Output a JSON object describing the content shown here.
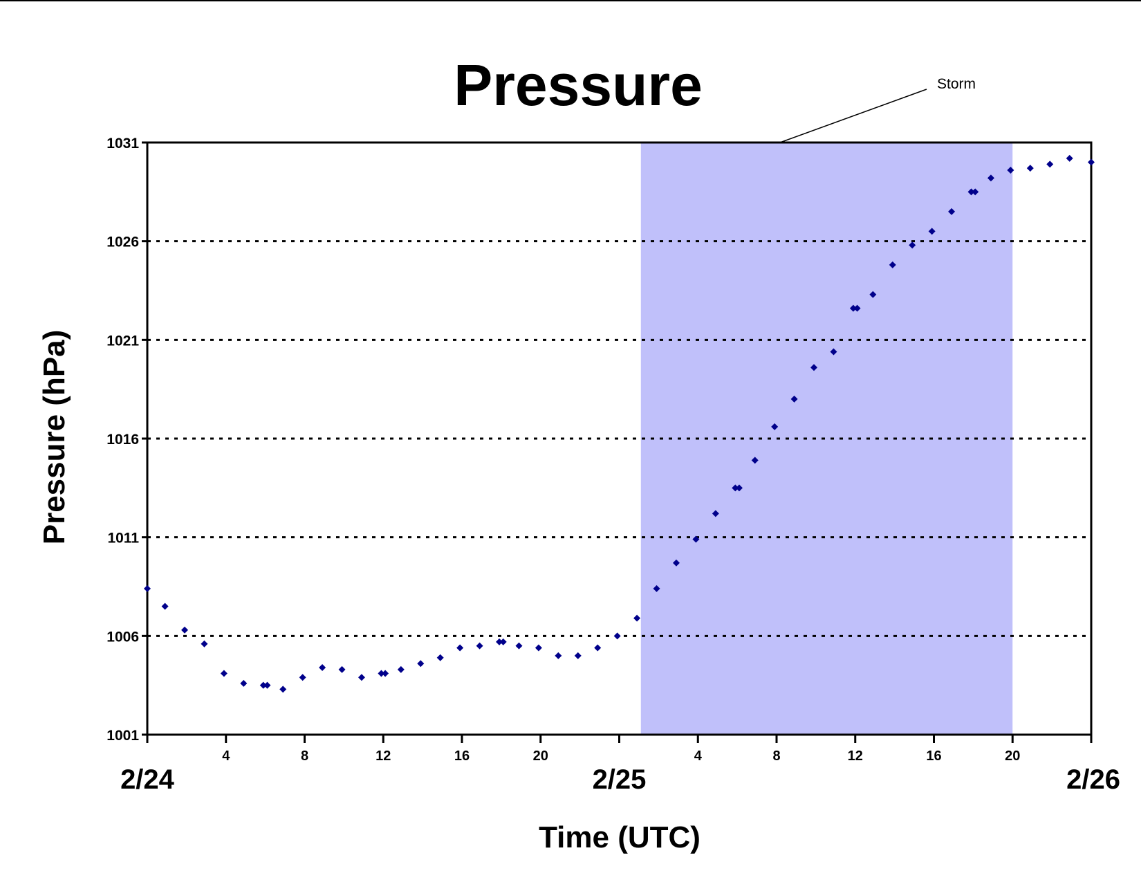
{
  "chart_data": {
    "type": "scatter",
    "title": "Pressure",
    "xlabel": "Time (UTC)",
    "ylabel": "Pressure (hPa)",
    "xlim": [
      0,
      48
    ],
    "ylim": [
      1001,
      1031
    ],
    "yticks": [
      1001,
      1006,
      1011,
      1016,
      1021,
      1026,
      1031
    ],
    "x_hour_ticks": [
      {
        "x": 4,
        "label": "4"
      },
      {
        "x": 8,
        "label": "8"
      },
      {
        "x": 12,
        "label": "12"
      },
      {
        "x": 16,
        "label": "16"
      },
      {
        "x": 20,
        "label": "20"
      },
      {
        "x": 28,
        "label": "4"
      },
      {
        "x": 32,
        "label": "8"
      },
      {
        "x": 36,
        "label": "12"
      },
      {
        "x": 40,
        "label": "16"
      },
      {
        "x": 44,
        "label": "20"
      }
    ],
    "x_date_labels": [
      {
        "x": 0,
        "label": "2/24"
      },
      {
        "x": 24,
        "label": "2/25"
      },
      {
        "x": 48,
        "label": "2/26"
      }
    ],
    "grid": "horizontal dotted",
    "marker_color": "#00008b",
    "shade_color": "#c0c0fa",
    "annotations": [
      {
        "label": "Storm",
        "span_x": [
          25.1,
          44
        ]
      }
    ],
    "x": [
      0,
      0.9,
      1.9,
      2.9,
      3.9,
      4.9,
      5.9,
      6.1,
      6.9,
      7.9,
      8.9,
      9.9,
      10.9,
      11.9,
      12.1,
      12.9,
      13.9,
      14.9,
      15.9,
      16.9,
      17.9,
      18.1,
      18.9,
      19.9,
      20.9,
      21.9,
      22.9,
      23.9,
      24.9,
      25.9,
      26.9,
      27.9,
      28.9,
      29.9,
      30.1,
      30.9,
      31.9,
      32.9,
      33.9,
      34.9,
      35.9,
      36.1,
      36.9,
      37.9,
      38.9,
      39.9,
      40.9,
      41.9,
      42.1,
      42.9,
      43.9,
      44.9,
      45.9,
      46.9,
      48
    ],
    "y": [
      1008.4,
      1007.5,
      1006.3,
      1005.6,
      1004.1,
      1003.6,
      1003.5,
      1003.5,
      1003.3,
      1003.9,
      1004.4,
      1004.3,
      1003.9,
      1004.1,
      1004.1,
      1004.3,
      1004.6,
      1004.9,
      1005.4,
      1005.5,
      1005.7,
      1005.7,
      1005.5,
      1005.4,
      1005.0,
      1005.0,
      1005.4,
      1006.0,
      1006.9,
      1008.4,
      1009.7,
      1010.9,
      1012.2,
      1013.5,
      1013.5,
      1014.9,
      1016.6,
      1018.0,
      1019.6,
      1020.4,
      1022.6,
      1022.6,
      1023.3,
      1024.8,
      1025.8,
      1026.5,
      1027.5,
      1028.5,
      1028.5,
      1029.2,
      1029.6,
      1029.7,
      1029.9,
      1030.2,
      1030.0
    ]
  }
}
